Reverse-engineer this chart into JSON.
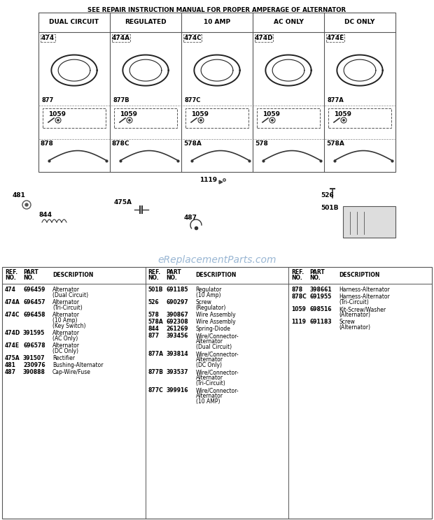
{
  "title": "SEE REPAIR INSTRUCTION MANUAL FOR PROPER AMPERAGE OF ALTERNATOR",
  "page_bg": "#ffffff",
  "diagram_cols": [
    "DUAL CIRCUIT",
    "REGULATED",
    "10 AMP",
    "AC ONLY",
    "DC ONLY"
  ],
  "watermark": "eReplacementParts.com",
  "table_col1": [
    [
      "474",
      "696459",
      "Alternator\n(Dual Circuit)"
    ],
    [
      "474A",
      "696457",
      "Alternator\n(Tri-Circuit)"
    ],
    [
      "474C",
      "696458",
      "Alternator\n(10 Amp)\n(Key Switch)"
    ],
    [
      "474D",
      "391595",
      "Alternator\n(AC Only)"
    ],
    [
      "474E",
      "696578",
      "Alternator\n(DC Only)"
    ],
    [
      "475A",
      "391507",
      "Rectifier"
    ],
    [
      "481",
      "230976",
      "Bushing-Alternator"
    ],
    [
      "487",
      "390888",
      "Cap-Wire/Fuse"
    ]
  ],
  "table_col2": [
    [
      "501B",
      "691185",
      "Regulator\n(10 Amp)"
    ],
    [
      "526",
      "690297",
      "Screw\n(Regulator)"
    ],
    [
      "578",
      "390867",
      "Wire Assembly"
    ],
    [
      "578A",
      "692308",
      "Wire Assembly"
    ],
    [
      "844",
      "261269",
      "Spring-Diode"
    ],
    [
      "877",
      "393456",
      "Wire/Connector-\nAlternator\n(Dual Circuit)"
    ],
    [
      "877A",
      "393814",
      "Wire/Connector-\nAlternator\n(DC Only)"
    ],
    [
      "877B",
      "393537",
      "Wire/Connector-\nAlternator\n(Tri-Circuit)"
    ],
    [
      "877C",
      "399916",
      "Wire/Connector-\nAlternator\n(10 AMP)"
    ]
  ],
  "table_col3": [
    [
      "878",
      "398661",
      "Harness-Alternator"
    ],
    [
      "878C",
      "691955",
      "Harness-Alternator\n(Tri-Circuit)"
    ],
    [
      "1059",
      "698516",
      "Kit-Screw/Washer\n(Alternator)"
    ],
    [
      "1119",
      "691183",
      "Screw\n(Alternator)"
    ]
  ]
}
